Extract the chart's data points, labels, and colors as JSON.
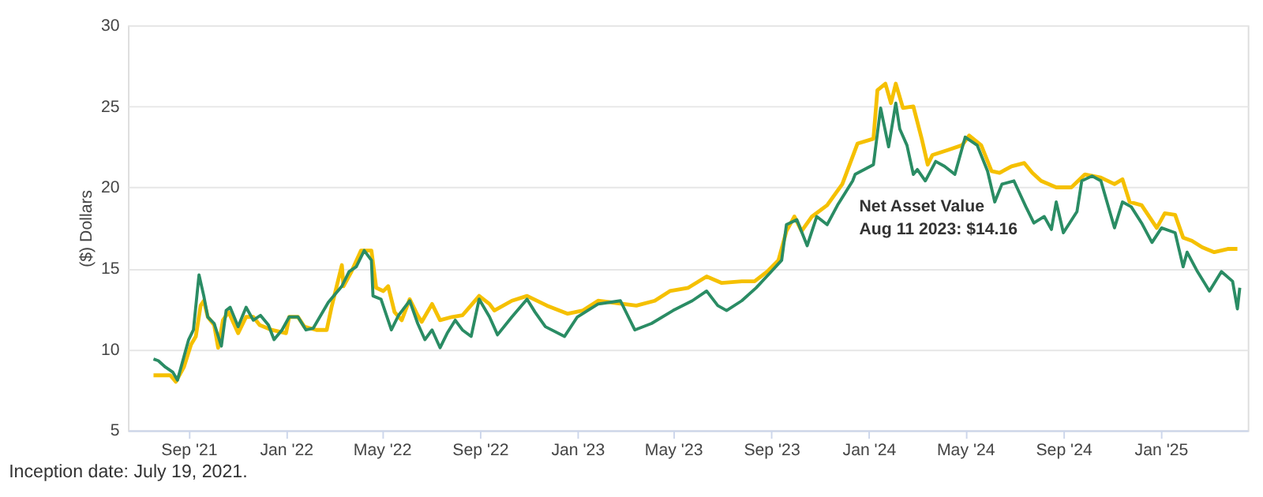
{
  "chart_data": {
    "type": "line",
    "ylabel": "($) Dollars",
    "xlim": [
      "2021-06-17",
      "2025-04-20"
    ],
    "ylim": [
      5,
      30
    ],
    "yticks": [
      5,
      10,
      15,
      20,
      25,
      30
    ],
    "xticks": [
      {
        "value": "2021-09-01",
        "label": "Sep '21"
      },
      {
        "value": "2022-01-01",
        "label": "Jan '22"
      },
      {
        "value": "2022-05-01",
        "label": "May '22"
      },
      {
        "value": "2022-09-01",
        "label": "Sep '22"
      },
      {
        "value": "2023-01-01",
        "label": "Jan '23"
      },
      {
        "value": "2023-05-01",
        "label": "May '23"
      },
      {
        "value": "2023-09-01",
        "label": "Sep '23"
      },
      {
        "value": "2024-01-01",
        "label": "Jan '24"
      },
      {
        "value": "2024-05-01",
        "label": "May '24"
      },
      {
        "value": "2024-09-01",
        "label": "Sep '24"
      },
      {
        "value": "2025-01-01",
        "label": "Jan '25"
      }
    ],
    "grid": "y",
    "marker": "none",
    "line_style": "solid",
    "annotations": [
      "Net Asset Value\nAug 11 2023: $14.16",
      "Inception date: July 19, 2021."
    ],
    "series": [
      {
        "color": "#2a8c64",
        "x": [
          "2021-07-19",
          "2021-07-25",
          "2021-08-03",
          "2021-08-12",
          "2021-08-18",
          "2021-09-01",
          "2021-09-07",
          "2021-09-14",
          "2021-09-20",
          "2021-09-25",
          "2021-10-03",
          "2021-10-12",
          "2021-10-18",
          "2021-10-23",
          "2021-11-02",
          "2021-11-12",
          "2021-11-21",
          "2021-11-30",
          "2021-12-10",
          "2021-12-17",
          "2021-12-27",
          "2022-01-05",
          "2022-01-16",
          "2022-01-26",
          "2022-02-04",
          "2022-02-23",
          "2022-03-12",
          "2022-03-21",
          "2022-03-30",
          "2022-04-09",
          "2022-04-18",
          "2022-04-20",
          "2022-04-30",
          "2022-05-13",
          "2022-05-22",
          "2022-06-05",
          "2022-06-15",
          "2022-06-24",
          "2022-07-03",
          "2022-07-13",
          "2022-07-22",
          "2022-08-01",
          "2022-08-10",
          "2022-08-21",
          "2022-08-31",
          "2022-09-13",
          "2022-09-23",
          "2022-10-11",
          "2022-10-30",
          "2022-11-09",
          "2022-11-22",
          "2022-12-16",
          "2023-01-01",
          "2023-01-27",
          "2023-02-24",
          "2023-03-14",
          "2023-04-04",
          "2023-05-01",
          "2023-05-25",
          "2023-06-12",
          "2023-06-26",
          "2023-07-07",
          "2023-07-26",
          "2023-08-13",
          "2023-09-01",
          "2023-09-14",
          "2023-09-20",
          "2023-10-03",
          "2023-10-16",
          "2023-10-28",
          "2023-11-10",
          "2023-11-23",
          "2023-12-12",
          "2023-12-15",
          "2024-01-07",
          "2024-01-16",
          "2024-01-26",
          "2024-02-04",
          "2024-02-09",
          "2024-02-18",
          "2024-02-26",
          "2024-03-02",
          "2024-03-12",
          "2024-03-25",
          "2024-04-05",
          "2024-04-18",
          "2024-05-01",
          "2024-05-16",
          "2024-05-29",
          "2024-06-07",
          "2024-06-16",
          "2024-07-01",
          "2024-07-16",
          "2024-07-26",
          "2024-08-08",
          "2024-08-17",
          "2024-08-23",
          "2024-09-01",
          "2024-09-18",
          "2024-09-24",
          "2024-10-07",
          "2024-10-18",
          "2024-11-04",
          "2024-11-14",
          "2024-11-25",
          "2024-12-08",
          "2024-12-21",
          "2025-01-02",
          "2025-01-19",
          "2025-01-29",
          "2025-02-03",
          "2025-02-16",
          "2025-03-03",
          "2025-03-18",
          "2025-04-01",
          "2025-04-07",
          "2025-04-10"
        ],
        "values": [
          9.4,
          9.3,
          8.9,
          8.6,
          8.1,
          10.6,
          11.2,
          14.6,
          13.3,
          12.0,
          11.6,
          10.2,
          12.4,
          12.6,
          11.4,
          12.6,
          11.8,
          12.1,
          11.5,
          10.6,
          11.2,
          12.0,
          12.0,
          11.2,
          11.3,
          12.9,
          13.9,
          14.8,
          15.1,
          16.1,
          15.5,
          13.3,
          13.1,
          11.2,
          12.1,
          13.0,
          11.6,
          10.6,
          11.2,
          10.1,
          11.0,
          11.8,
          11.2,
          10.8,
          13.1,
          12.0,
          10.9,
          12.0,
          13.1,
          12.3,
          11.4,
          10.8,
          12.0,
          12.8,
          13.0,
          11.2,
          11.6,
          12.4,
          13.0,
          13.6,
          12.7,
          12.4,
          13.0,
          13.8,
          14.8,
          15.5,
          17.7,
          18.0,
          16.4,
          18.2,
          17.7,
          18.9,
          20.4,
          20.8,
          21.4,
          24.9,
          22.5,
          25.2,
          23.6,
          22.6,
          20.8,
          21.1,
          20.4,
          21.6,
          21.3,
          20.8,
          23.1,
          22.6,
          21.0,
          19.1,
          20.2,
          20.4,
          18.8,
          17.8,
          18.2,
          17.4,
          19.1,
          17.2,
          18.5,
          20.4,
          20.7,
          20.4,
          17.5,
          19.1,
          18.8,
          17.8,
          16.6,
          17.5,
          17.2,
          15.1,
          16.0,
          14.8,
          13.6,
          14.8,
          14.2,
          12.5,
          13.8
        ]
      },
      {
        "color": "#f5c000",
        "x": [
          "2021-07-19",
          "2021-08-09",
          "2021-08-16",
          "2021-08-26",
          "2021-09-04",
          "2021-09-10",
          "2021-09-16",
          "2021-09-20",
          "2021-09-25",
          "2021-10-03",
          "2021-10-08",
          "2021-10-14",
          "2021-10-21",
          "2021-11-02",
          "2021-11-12",
          "2021-11-21",
          "2021-11-29",
          "2021-12-14",
          "2022-01-01",
          "2022-01-05",
          "2022-01-16",
          "2022-01-24",
          "2022-02-08",
          "2022-02-21",
          "2022-02-27",
          "2022-03-12",
          "2022-03-14",
          "2022-03-24",
          "2022-04-05",
          "2022-04-18",
          "2022-04-24",
          "2022-05-03",
          "2022-05-09",
          "2022-05-17",
          "2022-05-26",
          "2022-06-05",
          "2022-06-15",
          "2022-06-20",
          "2022-07-03",
          "2022-07-13",
          "2022-07-28",
          "2022-08-10",
          "2022-08-31",
          "2022-09-13",
          "2022-09-19",
          "2022-10-11",
          "2022-10-30",
          "2022-11-24",
          "2022-12-20",
          "2023-01-08",
          "2023-01-27",
          "2023-03-16",
          "2023-04-08",
          "2023-04-27",
          "2023-05-20",
          "2023-06-12",
          "2023-07-01",
          "2023-07-26",
          "2023-08-11",
          "2023-08-27",
          "2023-09-10",
          "2023-09-20",
          "2023-09-30",
          "2023-10-09",
          "2023-10-22",
          "2023-11-10",
          "2023-11-29",
          "2023-12-18",
          "2024-01-07",
          "2024-01-12",
          "2024-01-22",
          "2024-01-29",
          "2024-02-04",
          "2024-02-13",
          "2024-02-26",
          "2024-03-08",
          "2024-03-15",
          "2024-03-21",
          "2024-04-09",
          "2024-04-27",
          "2024-05-06",
          "2024-05-21",
          "2024-06-03",
          "2024-06-13",
          "2024-06-28",
          "2024-07-14",
          "2024-07-24",
          "2024-08-04",
          "2024-08-23",
          "2024-09-11",
          "2024-09-28",
          "2024-10-18",
          "2024-11-04",
          "2024-11-14",
          "2024-11-23",
          "2024-12-08",
          "2024-12-27",
          "2025-01-06",
          "2025-01-19",
          "2025-01-29",
          "2025-02-09",
          "2025-02-22",
          "2025-03-09",
          "2025-03-26",
          "2025-04-07"
        ],
        "values": [
          8.4,
          8.4,
          8.0,
          8.9,
          10.3,
          10.8,
          12.7,
          13.0,
          12.0,
          11.5,
          10.1,
          11.8,
          12.3,
          11.0,
          12.0,
          12.0,
          11.5,
          11.2,
          11.0,
          12.0,
          12.0,
          11.4,
          11.2,
          11.2,
          12.6,
          15.2,
          13.9,
          14.8,
          16.1,
          16.1,
          13.8,
          13.6,
          13.9,
          12.3,
          11.8,
          13.1,
          12.1,
          11.7,
          12.8,
          11.8,
          12.0,
          12.1,
          13.3,
          12.8,
          12.4,
          13.0,
          13.3,
          12.7,
          12.2,
          12.4,
          13.0,
          12.7,
          13.0,
          13.6,
          13.8,
          14.5,
          14.1,
          14.2,
          14.2,
          14.8,
          15.5,
          17.3,
          18.2,
          17.3,
          18.2,
          18.9,
          20.2,
          22.7,
          23.0,
          26.0,
          26.4,
          25.2,
          26.4,
          24.9,
          25.0,
          22.9,
          21.4,
          22.0,
          22.3,
          22.6,
          23.2,
          22.6,
          21.0,
          20.9,
          21.3,
          21.5,
          20.9,
          20.4,
          20.0,
          20.0,
          20.8,
          20.6,
          20.2,
          20.5,
          19.1,
          18.9,
          17.5,
          18.4,
          18.3,
          16.9,
          16.7,
          16.3,
          16.0,
          16.2,
          16.2
        ]
      }
    ]
  }
}
